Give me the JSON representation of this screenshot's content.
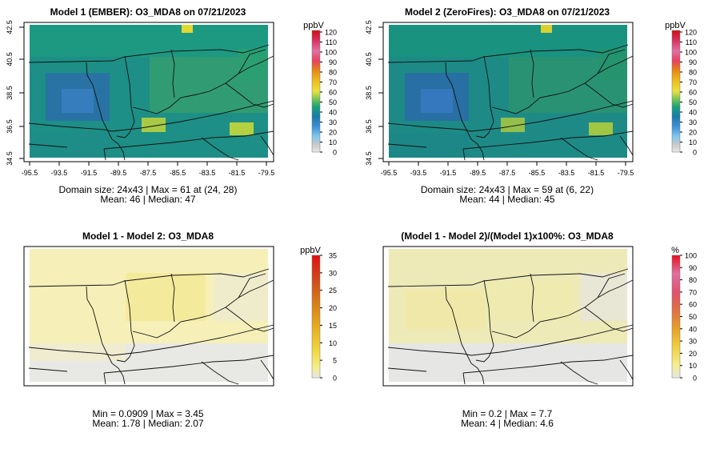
{
  "panels": [
    {
      "title": "Model 1 (EMBER): O3_MDA8 on 07/21/2023",
      "unit": "ppbV",
      "stats1": "Domain size: 24x43 | Max = 61 at (24, 28)",
      "stats2": "Mean: 46 |  Median: 47",
      "legend_ticks": [
        "0",
        "10",
        "20",
        "30",
        "40",
        "50",
        "60",
        "70",
        "80",
        "90",
        "100",
        "110",
        "120"
      ],
      "show_axes": true
    },
    {
      "title": "Model 2 (ZeroFires): O3_MDA8 on 07/21/2023",
      "unit": "ppbV",
      "stats1": "Domain size: 24x43 | Max = 59 at (6, 22)",
      "stats2": "Mean: 44 |  Median: 45",
      "legend_ticks": [
        "0",
        "10",
        "20",
        "30",
        "40",
        "50",
        "60",
        "70",
        "80",
        "90",
        "100",
        "110",
        "120"
      ],
      "show_axes": true
    },
    {
      "title": "Model 1 - Model 2: O3_MDA8",
      "unit": "ppbV",
      "stats1": "Min = 0.0909 | Max = 3.45",
      "stats2": "Mean: 1.78 |  Median: 2.07",
      "legend_ticks": [
        "0",
        "5",
        "10",
        "15",
        "20",
        "25",
        "30",
        "35"
      ],
      "show_axes": false
    },
    {
      "title": "(Model 1 - Model 2)/(Model 1)x100%: O3_MDA8",
      "unit": "%",
      "stats1": "Min = 0.2 | Max = 7.7",
      "stats2": "Mean: 4 |  Median: 4.6",
      "legend_ticks": [
        "0",
        "10",
        "20",
        "30",
        "40",
        "50",
        "60",
        "70",
        "80",
        "90",
        "100"
      ],
      "show_axes": false
    }
  ],
  "chart_data": [
    {
      "type": "heatmap",
      "title": "Model 1 (EMBER): O3_MDA8 on 07/21/2023",
      "variable": "O3_MDA8",
      "units": "ppbV",
      "grid": [
        24,
        43
      ],
      "x_ticks": [
        "-95.5",
        "-93.5",
        "-91.5",
        "-89.5",
        "-87.5",
        "-85.5",
        "-83.5",
        "-81.5",
        "-79.5"
      ],
      "y_ticks": [
        "34.5",
        "36.5",
        "38.5",
        "40.5",
        "42.5"
      ],
      "xlim": [
        -95.5,
        -79.5
      ],
      "ylim": [
        34.5,
        42.5
      ],
      "colorbar": [
        0,
        120
      ],
      "max": 61,
      "max_at": [
        24,
        28
      ],
      "mean": 46,
      "median": 47
    },
    {
      "type": "heatmap",
      "title": "Model 2 (ZeroFires): O3_MDA8 on 07/21/2023",
      "variable": "O3_MDA8",
      "units": "ppbV",
      "grid": [
        24,
        43
      ],
      "x_ticks": [
        "-95.5",
        "-93.5",
        "-91.5",
        "-89.5",
        "-87.5",
        "-85.5",
        "-83.5",
        "-81.5",
        "-79.5"
      ],
      "y_ticks": [
        "34.5",
        "36.5",
        "38.5",
        "40.5",
        "42.5"
      ],
      "xlim": [
        -95.5,
        -79.5
      ],
      "ylim": [
        34.5,
        42.5
      ],
      "colorbar": [
        0,
        120
      ],
      "max": 59,
      "max_at": [
        6,
        22
      ],
      "mean": 44,
      "median": 45
    },
    {
      "type": "heatmap",
      "title": "Model 1 - Model 2: O3_MDA8",
      "units": "ppbV",
      "colorbar": [
        0,
        35
      ],
      "min": 0.0909,
      "max": 3.45,
      "mean": 1.78,
      "median": 2.07
    },
    {
      "type": "heatmap",
      "title": "(Model 1 - Model 2)/(Model 1)x100%: O3_MDA8",
      "units": "%",
      "colorbar": [
        0,
        100
      ],
      "min": 0.2,
      "max": 7.7,
      "mean": 4,
      "median": 4.6
    }
  ]
}
